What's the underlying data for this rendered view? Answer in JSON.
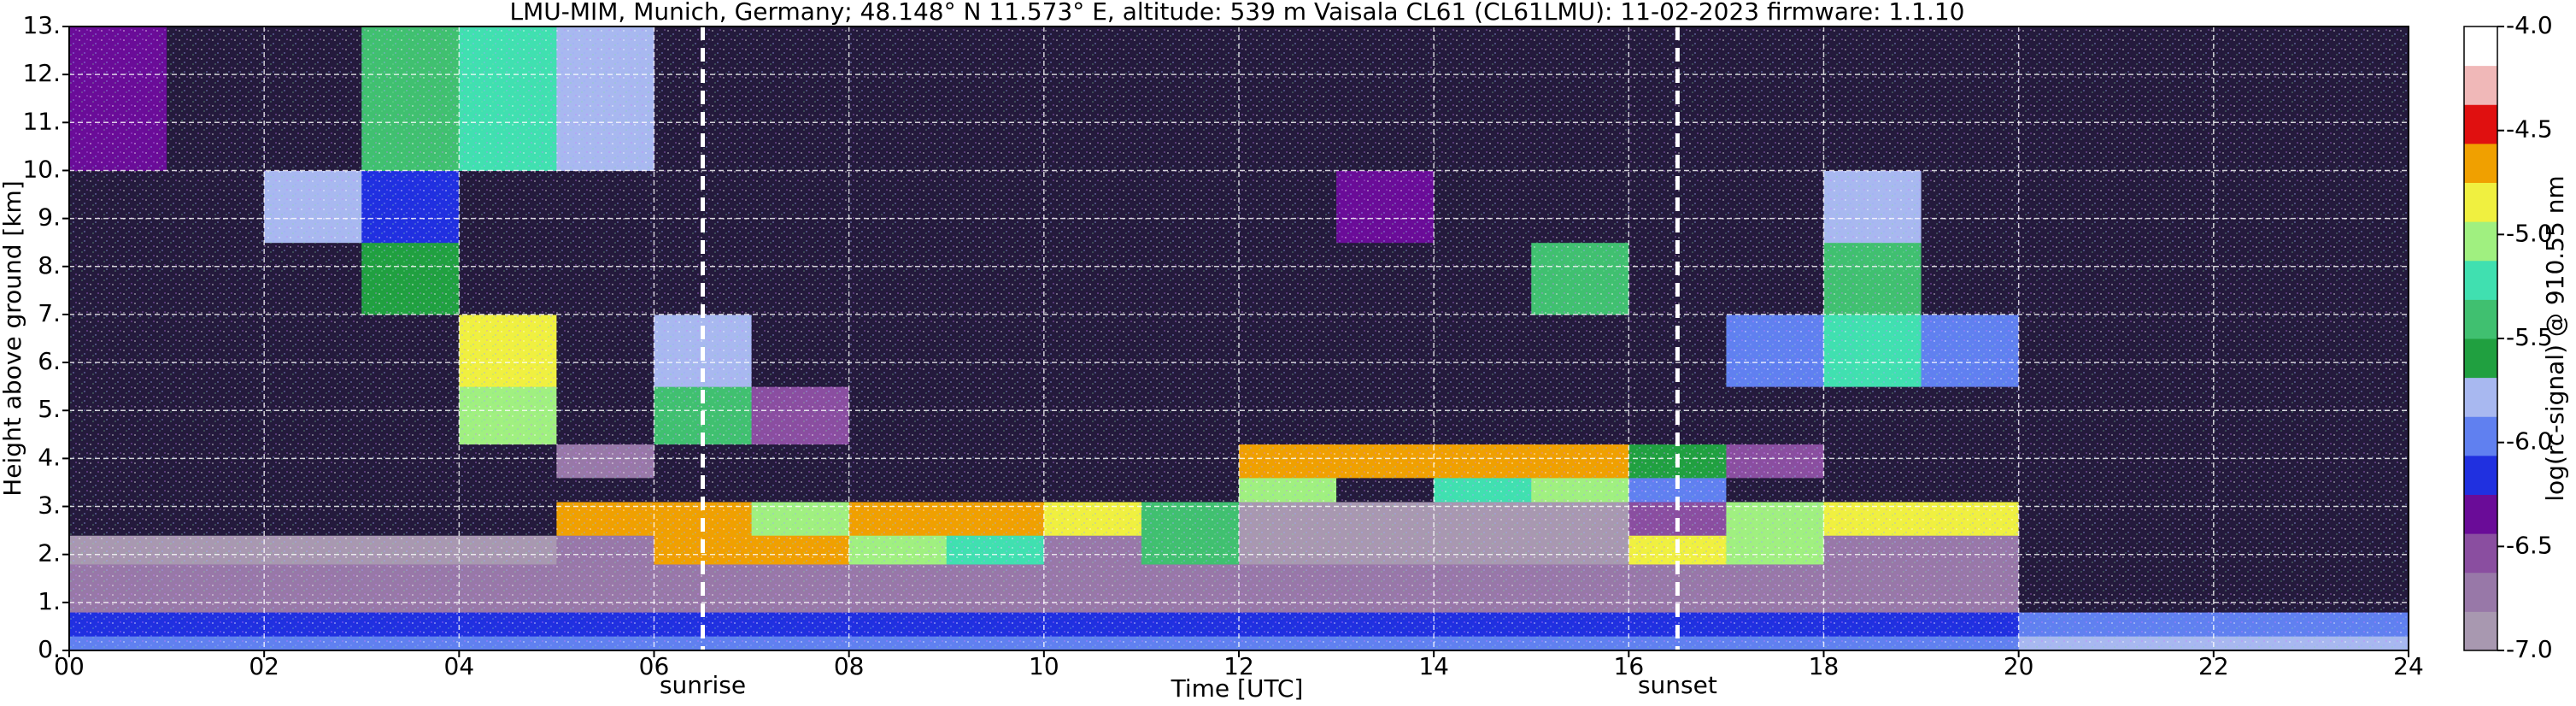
{
  "chart_data": {
    "type": "heatmap",
    "title": "LMU-MIM, Munich, Germany; 48.148° N 11.573° E, altitude: 539 m    Vaisala CL61 (CL61LMU): 11-02-2023    firmware: 1.1.10",
    "x_label": "Time [UTC]",
    "y_label": "Height above ground [km]",
    "xlim": [
      0,
      24
    ],
    "ylim": [
      0,
      13
    ],
    "xticks": [
      {
        "value": 0,
        "label": "00"
      },
      {
        "value": 2,
        "label": "02"
      },
      {
        "value": 4,
        "label": "04"
      },
      {
        "value": 6,
        "label": "06"
      },
      {
        "value": 8,
        "label": "08"
      },
      10,
      12,
      14,
      16,
      18,
      20,
      22,
      24
    ],
    "yticks": [
      {
        "value": 0,
        "label": "0."
      },
      {
        "value": 1,
        "label": "1."
      },
      {
        "value": 2,
        "label": "2."
      },
      {
        "value": 3,
        "label": "3."
      },
      {
        "value": 4,
        "label": "4."
      },
      {
        "value": 5,
        "label": "5."
      },
      {
        "value": 6,
        "label": "6."
      },
      {
        "value": 7,
        "label": "7."
      },
      {
        "value": 8,
        "label": "8."
      },
      {
        "value": 9,
        "label": "9."
      },
      {
        "value": 10,
        "label": "10."
      },
      {
        "value": 11,
        "label": "11."
      },
      {
        "value": 12,
        "label": "12."
      },
      {
        "value": 13,
        "label": "13."
      }
    ],
    "grid": true,
    "x_bins": [
      0,
      1,
      2,
      3,
      4,
      5,
      6,
      7,
      8,
      9,
      10,
      11,
      12,
      13,
      14,
      15,
      16,
      17,
      18,
      19,
      20,
      21,
      22,
      23,
      24
    ],
    "y_bins": [
      0,
      0.3,
      0.8,
      1.8,
      2.4,
      3.1,
      3.6,
      4.3,
      5.5,
      7,
      8.5,
      10,
      13
    ],
    "values": [
      [
        -5.9,
        -5.9,
        -5.9,
        -5.9,
        -5.9,
        -5.9,
        -5.9,
        -5.9,
        -5.9,
        -5.9,
        -5.9,
        -5.9,
        -5.9,
        -5.9,
        -5.9,
        -5.9,
        -5.9,
        -5.9,
        -5.9,
        -5.9,
        -5.7,
        -5.7,
        -5.7,
        -5.7
      ],
      [
        -6.2,
        -6.2,
        -6.2,
        -6.2,
        -6.2,
        -6.2,
        -6.2,
        -6.2,
        -6.2,
        -6.2,
        -6.2,
        -6.2,
        -6.2,
        -6.2,
        -6.2,
        -6.2,
        -6.2,
        -6.2,
        -6.2,
        -6.2,
        -6.0,
        -6.0,
        -6.0,
        -6.0
      ],
      [
        -6.7,
        -6.7,
        -6.7,
        -6.7,
        -6.7,
        -6.7,
        -6.7,
        -6.7,
        -6.7,
        -6.7,
        -6.7,
        -6.7,
        -6.7,
        -6.7,
        -6.7,
        -6.7,
        -6.7,
        -6.7,
        -6.7,
        -6.7,
        -7.5,
        -7.5,
        -7.5,
        -7.5
      ],
      [
        -6.9,
        -6.9,
        -6.9,
        -6.9,
        -6.9,
        -6.8,
        -4.6,
        -4.6,
        -5.0,
        -5.2,
        -6.8,
        -5.5,
        -6.9,
        -6.9,
        -6.9,
        -6.9,
        -4.8,
        -5.0,
        -6.8,
        -6.8,
        -7.5,
        -7.5,
        -7.5,
        -7.5
      ],
      [
        -7.2,
        -7.2,
        -7.2,
        -7.2,
        -7.2,
        -4.6,
        -4.6,
        -5.0,
        -4.6,
        -4.6,
        -4.8,
        -5.5,
        -7.0,
        -7.0,
        -7.0,
        -7.0,
        -6.5,
        -5.0,
        -4.8,
        -4.8,
        -7.5,
        -7.5,
        -7.5,
        -7.5
      ],
      [
        -7.2,
        -7.2,
        -7.2,
        -7.2,
        -7.2,
        -7.2,
        -7.2,
        -7.2,
        -7.2,
        -7.2,
        -7.2,
        -7.2,
        -5.1,
        -7.2,
        -5.3,
        -5.0,
        -6.0,
        -7.2,
        -7.2,
        -7.2,
        -7.2,
        -7.2,
        -7.2,
        -7.2
      ],
      [
        -7.2,
        -7.2,
        -7.2,
        -7.2,
        -7.2,
        -6.8,
        -7.2,
        -7.2,
        -7.2,
        -7.2,
        -7.2,
        -7.2,
        -4.7,
        -4.6,
        -4.6,
        -4.7,
        -5.6,
        -6.5,
        -7.2,
        -7.2,
        -7.2,
        -7.2,
        -7.2,
        -7.2
      ],
      [
        -7.2,
        -7.2,
        -7.2,
        -7.2,
        -5.0,
        -7.2,
        -5.5,
        -6.5,
        -7.2,
        -7.2,
        -7.2,
        -7.2,
        -7.2,
        -7.2,
        -7.2,
        -7.2,
        -7.2,
        -7.2,
        -7.2,
        -7.2,
        -7.2,
        -7.2,
        -7.2,
        -7.2
      ],
      [
        -7.2,
        -7.2,
        -7.2,
        -7.2,
        -4.8,
        -7.2,
        -5.8,
        -7.2,
        -7.2,
        -7.2,
        -7.2,
        -7.2,
        -7.2,
        -7.2,
        -7.2,
        -7.2,
        -7.2,
        -6.0,
        -5.3,
        -6.0,
        -7.2,
        -7.2,
        -7.2,
        -7.2
      ],
      [
        -7.2,
        -7.2,
        -7.2,
        -5.6,
        -7.2,
        -7.2,
        -7.2,
        -7.2,
        -7.2,
        -7.2,
        -7.2,
        -7.2,
        -7.2,
        -7.2,
        -7.2,
        -5.5,
        -7.2,
        -7.2,
        -5.4,
        -7.2,
        -7.2,
        -7.2,
        -7.2,
        -7.2
      ],
      [
        -7.2,
        -7.2,
        -5.8,
        -6.2,
        -7.2,
        -7.2,
        -7.2,
        -7.2,
        -7.2,
        -7.2,
        -7.2,
        -7.2,
        -7.2,
        -6.3,
        -7.2,
        -7.2,
        -7.2,
        -7.2,
        -5.8,
        -7.2,
        -7.2,
        -7.2,
        -7.2,
        -7.2
      ],
      [
        -6.3,
        -7.2,
        -7.2,
        -5.4,
        -5.3,
        -5.8,
        -7.2,
        -7.2,
        -7.2,
        -7.2,
        -7.2,
        -7.2,
        -7.2,
        -7.2,
        -7.2,
        -7.2,
        -7.2,
        -7.2,
        -7.2,
        -7.2,
        -7.2,
        -7.2,
        -7.2,
        -7.2
      ]
    ],
    "annotations": [
      {
        "x": 6.5,
        "label": "sunrise"
      },
      {
        "x": 16.5,
        "label": "sunset"
      }
    ],
    "colorbar": {
      "label": "log(rc-signal) @ 910.55 nm",
      "lim": [
        -7,
        -4
      ],
      "ticks": [
        {
          "value": -7,
          "label": "-7.0"
        },
        -6.5,
        {
          "value": -6,
          "label": "-6.0"
        },
        -5.5,
        {
          "value": -5,
          "label": "-5.0"
        },
        -4.5,
        {
          "value": -4,
          "label": "-4.0"
        }
      ],
      "colors": [
        "#a898b0",
        "#9878a8",
        "#8a4ea0",
        "#6a0c98",
        "#2030e0",
        "#6080f0",
        "#a8b8f0",
        "#20a040",
        "#40c070",
        "#40e0b0",
        "#a0f080",
        "#f0f040",
        "#f0a000",
        "#e01010",
        "#f0b8b8",
        "#ffffff"
      ],
      "under_color": "#241a3c"
    }
  }
}
